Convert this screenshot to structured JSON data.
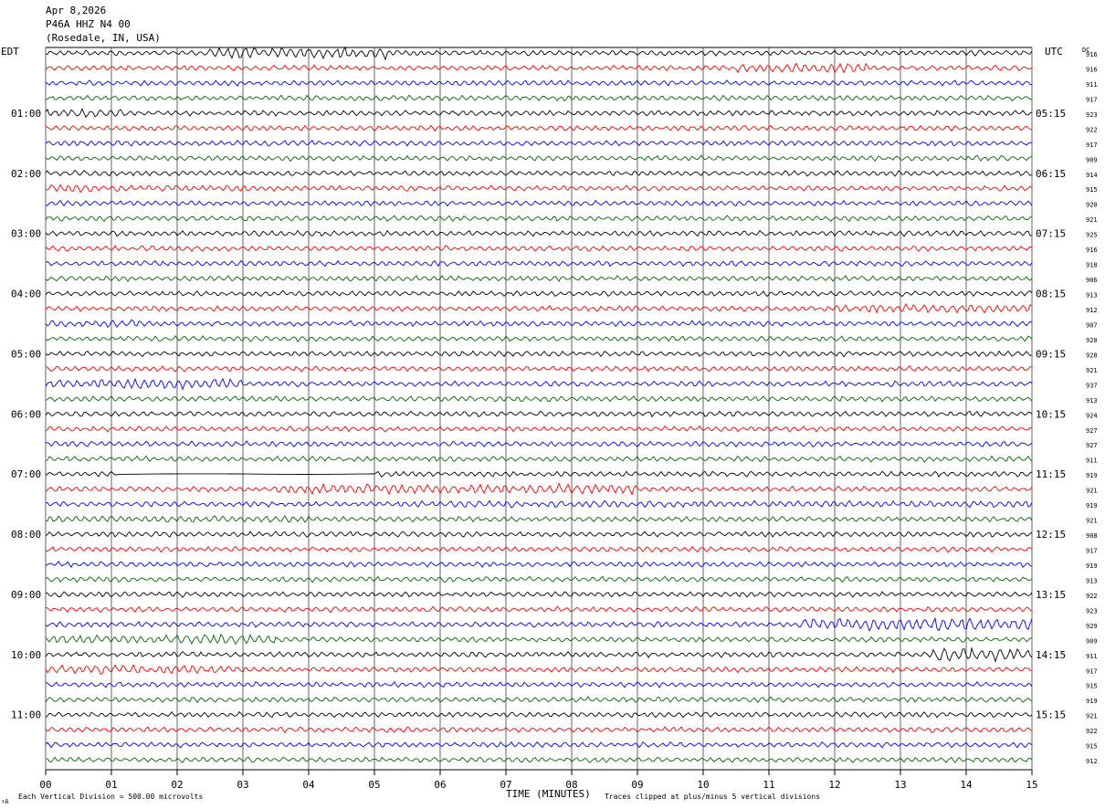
{
  "header": {
    "date": "Apr 8,2026",
    "station": "P46A HHZ N4 00",
    "location": "(Rosedale, IN, USA)"
  },
  "left_zone_label": "EDT",
  "right_zone_label": "UTC",
  "dc_label": "DC",
  "footer": {
    "scale_note": "Each Vertical Division =  500.00 microvolts",
    "clip_note": "Traces clipped at plus/minus 5 vertical divisions",
    "x_axis_label": "TIME (MINUTES)",
    "corner_mark": "↑A"
  },
  "chart_data": {
    "type": "line",
    "title": "",
    "xlabel": "TIME (MINUTES)",
    "x_range": [
      0,
      15
    ],
    "x_ticks": [
      "00",
      "01",
      "02",
      "03",
      "04",
      "05",
      "06",
      "07",
      "08",
      "09",
      "10",
      "11",
      "12",
      "13",
      "14",
      "15"
    ],
    "row_minutes": 15,
    "row_count": 48,
    "trace_colors": [
      "#000000",
      "#ff0000",
      "#0000ff",
      "#006600"
    ],
    "left_hour_labels": [
      {
        "row": 4,
        "text": "01:00"
      },
      {
        "row": 8,
        "text": "02:00"
      },
      {
        "row": 12,
        "text": "03:00"
      },
      {
        "row": 16,
        "text": "04:00"
      },
      {
        "row": 20,
        "text": "05:00"
      },
      {
        "row": 24,
        "text": "06:00"
      },
      {
        "row": 28,
        "text": "07:00"
      },
      {
        "row": 32,
        "text": "08:00"
      },
      {
        "row": 36,
        "text": "09:00"
      },
      {
        "row": 40,
        "text": "10:00"
      },
      {
        "row": 44,
        "text": "11:00"
      }
    ],
    "right_hour_labels": [
      {
        "row": 4,
        "text": "05:15"
      },
      {
        "row": 8,
        "text": "06:15"
      },
      {
        "row": 12,
        "text": "07:15"
      },
      {
        "row": 16,
        "text": "08:15"
      },
      {
        "row": 20,
        "text": "09:15"
      },
      {
        "row": 24,
        "text": "10:15"
      },
      {
        "row": 28,
        "text": "11:15"
      },
      {
        "row": 32,
        "text": "12:15"
      },
      {
        "row": 36,
        "text": "13:15"
      },
      {
        "row": 40,
        "text": "14:15"
      },
      {
        "row": 44,
        "text": "15:15"
      }
    ],
    "dc_values": [
      "916",
      "916",
      "911",
      "917",
      "923",
      "922",
      "917",
      "909",
      "914",
      "915",
      "920",
      "921",
      "925",
      "916",
      "918",
      "906",
      "913",
      "912",
      "907",
      "920",
      "928",
      "921",
      "937",
      "913",
      "924",
      "927",
      "927",
      "911",
      "919",
      "921",
      "919",
      "921",
      "908",
      "917",
      "919",
      "913",
      "922",
      "923",
      "929",
      "909",
      "911",
      "917",
      "915",
      "919",
      "921",
      "922",
      "915",
      "912"
    ],
    "high_activity_segments": [
      {
        "row": 0,
        "from": 2.5,
        "to": 5.2,
        "level": 2.2
      },
      {
        "row": 1,
        "from": 10.5,
        "to": 12.5,
        "level": 1.8
      },
      {
        "row": 4,
        "from": 0.0,
        "to": 1.2,
        "level": 1.6
      },
      {
        "row": 9,
        "from": 0.0,
        "to": 3.0,
        "level": 1.4
      },
      {
        "row": 17,
        "from": 12.0,
        "to": 15.0,
        "level": 1.6
      },
      {
        "row": 18,
        "from": 0.0,
        "to": 1.5,
        "level": 1.5
      },
      {
        "row": 22,
        "from": 0.0,
        "to": 3.0,
        "level": 1.9
      },
      {
        "row": 29,
        "from": 3.5,
        "to": 9.0,
        "level": 1.9
      },
      {
        "row": 30,
        "from": 5.5,
        "to": 15.0,
        "level": 1.3
      },
      {
        "row": 31,
        "from": 0.0,
        "to": 4.0,
        "level": 1.3
      },
      {
        "row": 38,
        "from": 11.5,
        "to": 15.0,
        "level": 2.5
      },
      {
        "row": 39,
        "from": 0.0,
        "to": 3.5,
        "level": 1.8
      },
      {
        "row": 40,
        "from": 13.5,
        "to": 15.0,
        "level": 2.6
      },
      {
        "row": 41,
        "from": 0.0,
        "to": 3.0,
        "level": 1.7
      }
    ],
    "gap_segments": [
      {
        "row": 28,
        "from": 1.1,
        "to": 5.0
      }
    ]
  }
}
